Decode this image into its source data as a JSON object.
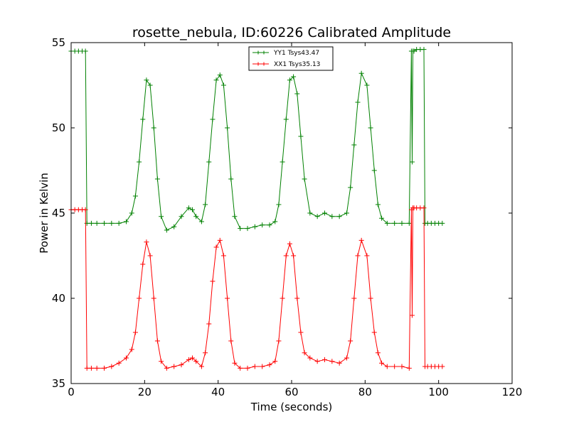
{
  "chart_data": {
    "type": "line",
    "title": "rosette_nebula, ID:60226 Calibrated Amplitude",
    "xlabel": "Time (seconds)",
    "ylabel": "Power in Kelvin",
    "xlim": [
      0,
      120
    ],
    "ylim": [
      35,
      55
    ],
    "xticks": [
      "0",
      "20",
      "40",
      "60",
      "80",
      "100",
      "120"
    ],
    "yticks": [
      "35",
      "40",
      "45",
      "50",
      "55"
    ],
    "grid": false,
    "legend_position": "top-center",
    "series": [
      {
        "name": "YY1 Tsys43.47",
        "color": "#008000",
        "marker": "+",
        "x": [
          0.0,
          1.0,
          2.0,
          3.0,
          3.9,
          4.3,
          5.5,
          7.0,
          9.0,
          11.0,
          13.0,
          15.0,
          16.5,
          17.5,
          18.5,
          19.5,
          20.5,
          21.5,
          22.5,
          23.5,
          24.5,
          26.0,
          28.0,
          30.0,
          32.0,
          33.0,
          34.0,
          35.5,
          36.5,
          37.5,
          38.5,
          39.5,
          40.5,
          41.5,
          42.5,
          43.5,
          44.5,
          46.0,
          48.0,
          50.0,
          52.0,
          54.0,
          55.5,
          56.5,
          57.5,
          58.5,
          59.5,
          60.5,
          61.5,
          62.5,
          63.5,
          65.0,
          67.0,
          69.0,
          71.0,
          73.0,
          75.0,
          76.0,
          77.0,
          78.0,
          79.0,
          80.5,
          81.5,
          82.5,
          83.5,
          84.5,
          86.0,
          88.0,
          90.0,
          92.0,
          92.6,
          92.8,
          93.0,
          93.3,
          94.0,
          95.0,
          96.0,
          96.3,
          97.0,
          98.0,
          99.0,
          100.0,
          101.0
        ],
        "y": [
          54.5,
          54.5,
          54.5,
          54.5,
          54.5,
          44.4,
          44.4,
          44.4,
          44.4,
          44.4,
          44.4,
          44.5,
          45.0,
          46.0,
          48.0,
          50.5,
          52.8,
          52.5,
          50.0,
          47.0,
          44.8,
          44.0,
          44.2,
          44.8,
          45.3,
          45.2,
          44.8,
          44.5,
          45.5,
          48.0,
          50.5,
          52.8,
          53.1,
          52.5,
          50.0,
          47.0,
          44.8,
          44.1,
          44.1,
          44.2,
          44.3,
          44.3,
          44.5,
          45.5,
          48.0,
          50.5,
          52.8,
          53.0,
          52.0,
          49.5,
          47.0,
          45.0,
          44.8,
          45.0,
          44.8,
          44.8,
          45.0,
          46.5,
          49.0,
          51.5,
          53.2,
          52.5,
          50.0,
          47.5,
          45.5,
          44.7,
          44.4,
          44.4,
          44.4,
          44.4,
          54.5,
          48.0,
          54.5,
          54.5,
          54.6,
          54.6,
          54.6,
          44.4,
          44.4,
          44.4,
          44.4,
          44.4,
          44.4
        ]
      },
      {
        "name": "XX1 Tsys35.13",
        "color": "#ff0000",
        "marker": "+",
        "x": [
          0.0,
          1.0,
          2.0,
          3.0,
          3.9,
          4.3,
          5.5,
          7.0,
          9.0,
          11.0,
          13.0,
          15.0,
          16.5,
          17.5,
          18.5,
          19.5,
          20.5,
          21.5,
          22.5,
          23.5,
          24.5,
          26.0,
          28.0,
          30.0,
          32.0,
          33.0,
          34.0,
          35.5,
          36.5,
          37.5,
          38.5,
          39.5,
          40.5,
          41.5,
          42.5,
          43.5,
          44.5,
          46.0,
          48.0,
          50.0,
          52.0,
          54.0,
          55.5,
          56.5,
          57.5,
          58.5,
          59.5,
          60.5,
          61.5,
          62.5,
          63.5,
          65.0,
          67.0,
          69.0,
          71.0,
          73.0,
          75.0,
          76.0,
          77.0,
          78.0,
          79.0,
          80.5,
          81.5,
          82.5,
          83.5,
          84.5,
          86.0,
          88.0,
          90.0,
          92.0,
          92.6,
          92.8,
          93.0,
          93.3,
          94.0,
          95.0,
          96.0,
          96.3,
          97.0,
          98.0,
          99.0,
          100.0,
          101.0
        ],
        "y": [
          45.2,
          45.2,
          45.2,
          45.2,
          45.2,
          35.9,
          35.9,
          35.9,
          35.9,
          36.0,
          36.2,
          36.5,
          37.0,
          38.0,
          40.0,
          42.0,
          43.3,
          42.5,
          40.0,
          37.5,
          36.3,
          35.9,
          36.0,
          36.1,
          36.4,
          36.5,
          36.3,
          36.0,
          36.8,
          38.5,
          41.0,
          43.0,
          43.4,
          42.5,
          40.0,
          37.5,
          36.2,
          35.9,
          35.9,
          36.0,
          36.0,
          36.1,
          36.3,
          37.5,
          40.0,
          42.5,
          43.2,
          42.5,
          40.0,
          38.0,
          36.8,
          36.5,
          36.3,
          36.4,
          36.3,
          36.2,
          36.5,
          37.5,
          40.0,
          42.5,
          43.4,
          42.5,
          40.0,
          38.0,
          36.8,
          36.2,
          36.0,
          36.0,
          36.0,
          35.9,
          45.2,
          39.0,
          45.3,
          45.3,
          45.3,
          45.3,
          45.3,
          36.0,
          36.0,
          36.0,
          36.0,
          36.0,
          36.0
        ]
      }
    ]
  }
}
